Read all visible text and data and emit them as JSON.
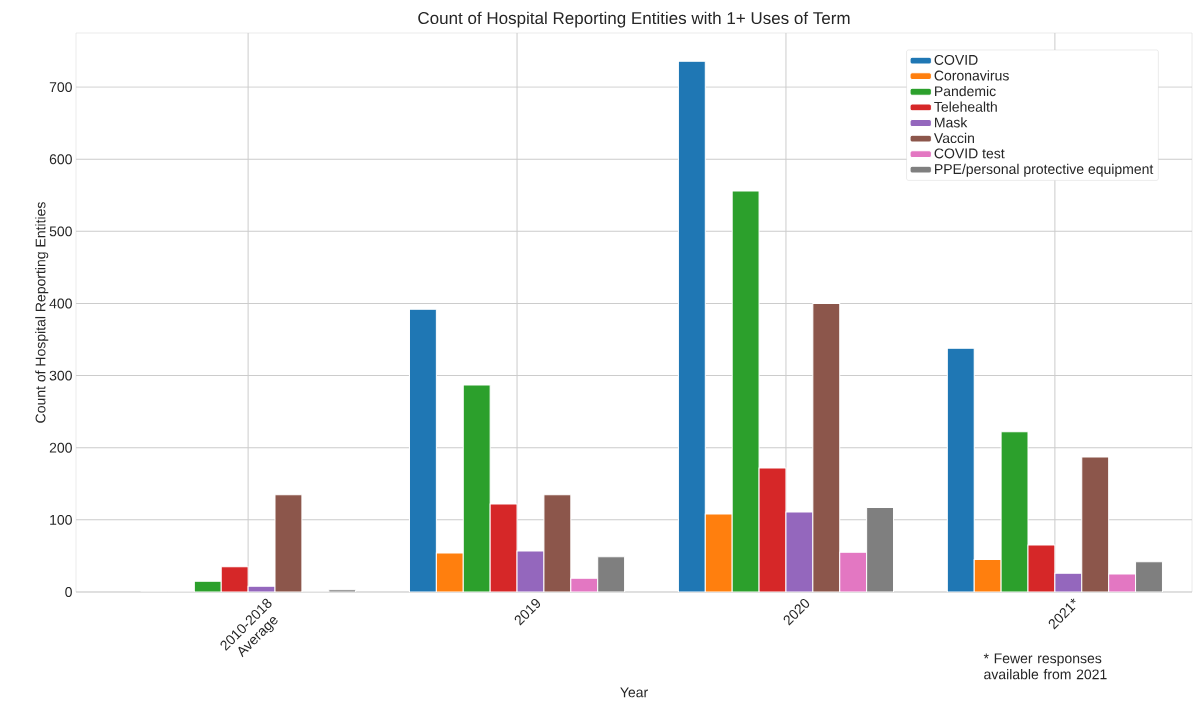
{
  "chart_data": {
    "type": "bar",
    "title": "Count of Hospital Reporting Entities with 1+ Uses of Term",
    "xlabel": "Year",
    "ylabel": "Count of Hospital Reporting Entities",
    "categories": [
      "2010-2018 Average",
      "2019",
      "2020",
      "2021*"
    ],
    "series": [
      {
        "name": "COVID",
        "color": "#1f77b4",
        "values": [
          0,
          392,
          736,
          338
        ]
      },
      {
        "name": "Coronavirus",
        "color": "#ff7f0e",
        "values": [
          0,
          54,
          108,
          45
        ]
      },
      {
        "name": "Pandemic",
        "color": "#2ca02c",
        "values": [
          15,
          287,
          556,
          222
        ]
      },
      {
        "name": "Telehealth",
        "color": "#d62728",
        "values": [
          35,
          122,
          172,
          65
        ]
      },
      {
        "name": "Mask",
        "color": "#9467bd",
        "values": [
          8,
          57,
          111,
          26
        ]
      },
      {
        "name": "Vaccin",
        "color": "#8c564b",
        "values": [
          135,
          135,
          400,
          187
        ]
      },
      {
        "name": "COVID test",
        "color": "#e377c2",
        "values": [
          0,
          19,
          55,
          25
        ]
      },
      {
        "name": "PPE/personal protective equipment",
        "color": "#7f7f7f",
        "values": [
          3,
          49,
          117,
          42
        ]
      }
    ],
    "ylim": [
      0,
      775
    ],
    "yticks": [
      0,
      100,
      200,
      300,
      400,
      500,
      600,
      700
    ],
    "grid": true,
    "legend": "top right",
    "annotations": [
      "* Fewer responses available from 2021"
    ]
  }
}
